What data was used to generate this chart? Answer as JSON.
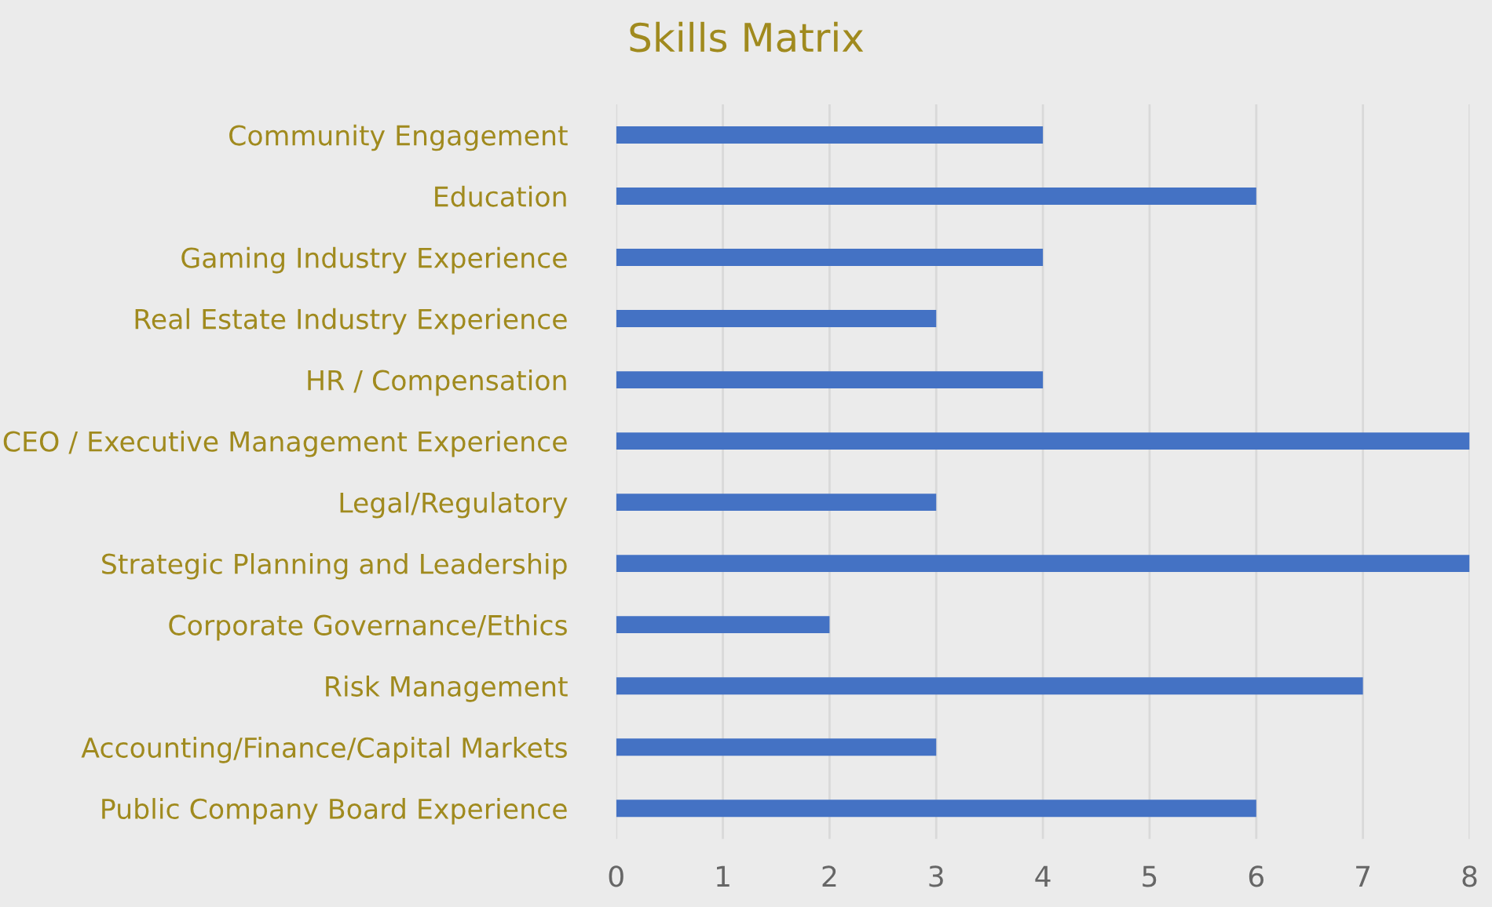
{
  "chart_data": {
    "type": "bar",
    "orientation": "horizontal",
    "title": "Skills Matrix",
    "categories": [
      "Community Engagement",
      "Education",
      "Gaming Industry Experience",
      "Real Estate Industry Experience",
      "HR / Compensation",
      "CEO / Executive Management Experience",
      "Legal/Regulatory",
      "Strategic Planning and Leadership",
      "Corporate Governance/Ethics",
      "Risk Management",
      "Accounting/Finance/Capital Markets",
      "Public Company Board Experience"
    ],
    "values": [
      4,
      6,
      4,
      3,
      4,
      8,
      3,
      8,
      2,
      7,
      3,
      6
    ],
    "color": "#4472c4",
    "xlim": [
      0,
      8
    ],
    "xticks": [
      0,
      1,
      2,
      3,
      4,
      5,
      6,
      7,
      8
    ],
    "grid": "x"
  }
}
